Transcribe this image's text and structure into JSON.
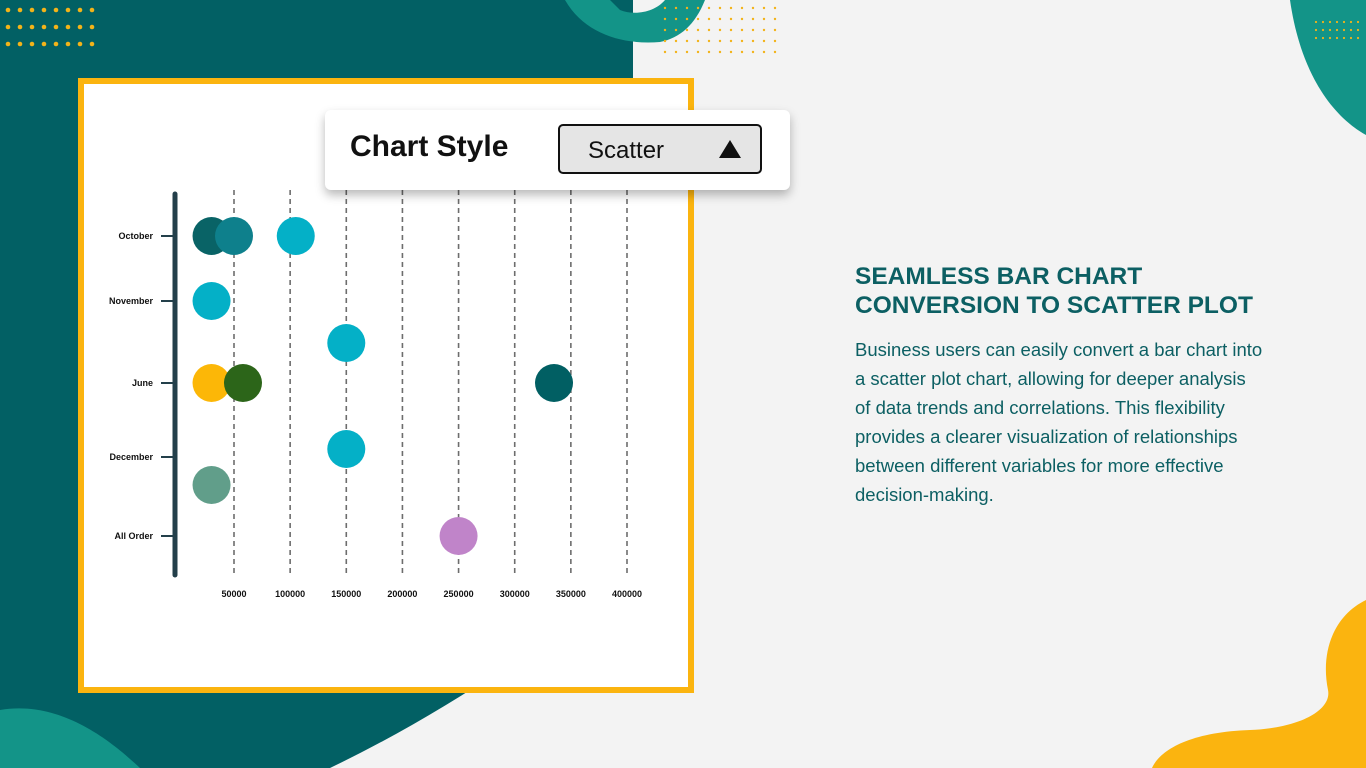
{
  "colors": {
    "dark_teal": "#026064",
    "teal": "#139488",
    "yellow": "#fbb40f",
    "dot_gold": "#f2b31a",
    "heading": "#0c5f63",
    "background": "#f3f3f3"
  },
  "chart_style_control": {
    "label": "Chart Style",
    "selected": "Scatter",
    "icon": "triangle-up-icon"
  },
  "chart_data": {
    "type": "scatter",
    "categories": [
      "October",
      "November",
      "June",
      "December",
      "All Order"
    ],
    "x_ticks": [
      50000,
      100000,
      150000,
      200000,
      250000,
      300000,
      350000,
      400000
    ],
    "x_tick_labels": [
      "50000",
      "100000",
      "150000",
      "200000",
      "250000",
      "300000",
      "350000",
      "400000"
    ],
    "xlim": [
      0,
      400000
    ],
    "grid": "vertical dashed lines at x ticks",
    "points": [
      {
        "category": "October",
        "offset": 0,
        "x": 30000,
        "color": "#096366"
      },
      {
        "category": "October",
        "offset": 0,
        "x": 50000,
        "color": "#0e808c"
      },
      {
        "category": "October",
        "offset": 0,
        "x": 105000,
        "color": "#04b0c7"
      },
      {
        "category": "November",
        "offset": 0,
        "x": 30000,
        "color": "#04b0c7"
      },
      {
        "category": "June",
        "offset": -0.5,
        "x": 150000,
        "color": "#04b0c7"
      },
      {
        "category": "June",
        "offset": 0,
        "x": 30000,
        "color": "#fcb707"
      },
      {
        "category": "June",
        "offset": 0,
        "x": 58000,
        "color": "#2c6519"
      },
      {
        "category": "June",
        "offset": 0,
        "x": 335000,
        "color": "#015f63"
      },
      {
        "category": "December",
        "offset": -0.1,
        "x": 150000,
        "color": "#04b0c7"
      },
      {
        "category": "December",
        "offset": 0.35,
        "x": 30000,
        "color": "#619e8a"
      },
      {
        "category": "All Order",
        "offset": 0,
        "x": 250000,
        "color": "#c084c9"
      }
    ]
  },
  "heading_lines": [
    "SEAMLESS BAR CHART",
    "CONVERSION TO SCATTER PLOT"
  ],
  "body_lines": [
    "Business users can easily convert a bar chart into",
    "a scatter plot chart, allowing for deeper analysis",
    "of data trends and correlations. This flexibility",
    "provides a clearer visualization of relationships",
    "between different variables for more effective",
    "decision-making."
  ]
}
